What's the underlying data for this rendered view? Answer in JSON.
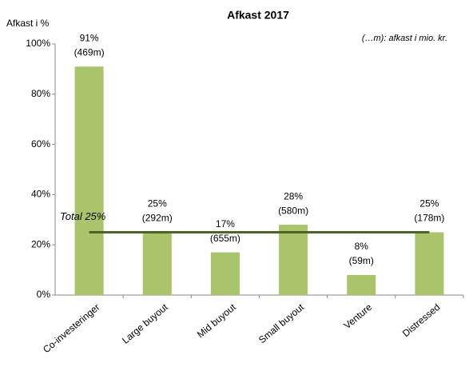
{
  "chart_data": {
    "type": "bar",
    "title": "Afkast 2017",
    "ylabel": "Afkast i %",
    "annotation": "(…m): afkast i mio. kr.",
    "categories": [
      "Co-investeringer",
      "Large buyout",
      "Mid buyout",
      "Small buyout",
      "Venture",
      "Distressed"
    ],
    "values": [
      91,
      25,
      17,
      28,
      8,
      25
    ],
    "value_labels": [
      "91%",
      "25%",
      "17%",
      "28%",
      "8%",
      "25%"
    ],
    "amounts": [
      469,
      292,
      655,
      580,
      59,
      178
    ],
    "amount_labels": [
      "(469m)",
      "(292m)",
      "(655m)",
      "(580m)",
      "(59m)",
      "(178m)"
    ],
    "total": 25,
    "total_label": "Total 25%",
    "total_color": "#4f6228",
    "color": "#a9c46a",
    "ylim": [
      0,
      100
    ],
    "yticks": [
      {
        "value": 0,
        "label": "0%"
      },
      {
        "value": 20,
        "label": "20%"
      },
      {
        "value": 40,
        "label": "40%"
      },
      {
        "value": 60,
        "label": "60%"
      },
      {
        "value": 80,
        "label": "80%"
      },
      {
        "value": 100,
        "label": "100%"
      }
    ]
  }
}
